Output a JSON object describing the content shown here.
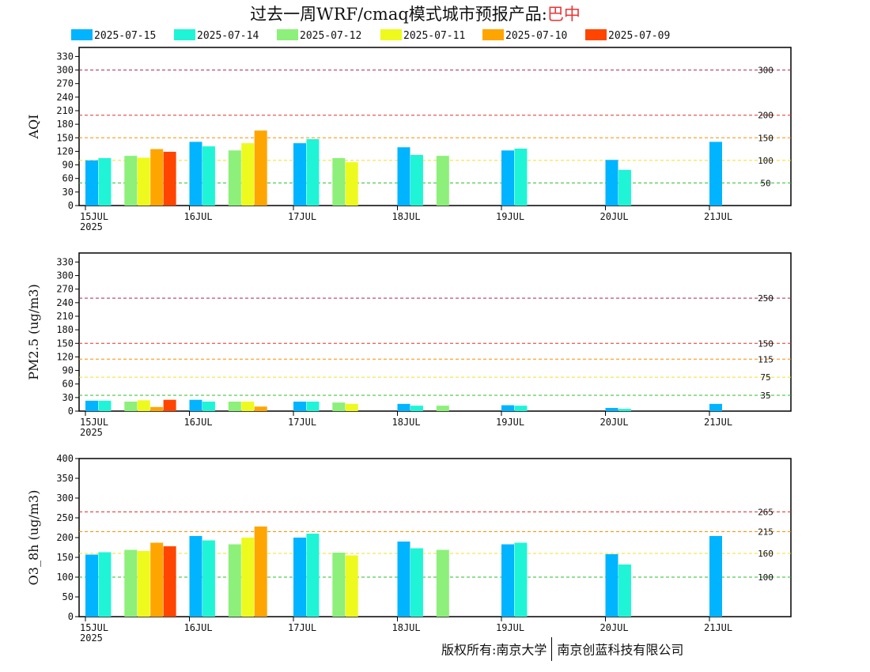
{
  "title": {
    "prefix": "过去一周WRF/cmaq模式城市预报产品:",
    "city": "巴中"
  },
  "footer": {
    "left": "版权所有:南京大学",
    "right": "南京创蓝科技有限公司"
  },
  "chart_data": {
    "type": "bar",
    "legend_position": "top",
    "series": [
      {
        "name": "2025-07-15",
        "color": "#00b4ff"
      },
      {
        "name": "2025-07-14",
        "color": "#1ff5d6"
      },
      {
        "name": "2025-07-12",
        "color": "#8cf07a"
      },
      {
        "name": "2025-07-11",
        "color": "#eefa1e"
      },
      {
        "name": "2025-07-10",
        "color": "#ffa500"
      },
      {
        "name": "2025-07-09",
        "color": "#ff4500"
      }
    ],
    "x_ticks": [
      "15JUL",
      "16JUL",
      "17JUL",
      "18JUL",
      "19JUL",
      "20JUL",
      "21JUL"
    ],
    "x_year": "2025",
    "panels": [
      {
        "ylabel": "AQI",
        "ylim": [
          0,
          350
        ],
        "yticks": [
          0,
          30,
          60,
          90,
          120,
          150,
          180,
          210,
          240,
          270,
          300,
          330
        ],
        "thresholds": [
          {
            "value": 300,
            "label": "300",
            "color": "#b0245a"
          },
          {
            "value": 200,
            "label": "200",
            "color": "#e03030"
          },
          {
            "value": 150,
            "label": "150",
            "color": "#ff8c00"
          },
          {
            "value": 100,
            "label": "100",
            "color": "#f0e020"
          },
          {
            "value": 50,
            "label": "50",
            "color": "#2dbd2d"
          }
        ],
        "bars": [
          {
            "series": "2025-07-15",
            "values": [
              100,
              141,
              138,
              129,
              122,
              101,
              141
            ]
          },
          {
            "series": "2025-07-14",
            "values": [
              105,
              131,
              147,
              112,
              126,
              79
            ]
          },
          {
            "series": "2025-07-12",
            "values": [
              110,
              122,
              105,
              110
            ]
          },
          {
            "series": "2025-07-11",
            "values": [
              106,
              138,
              96
            ]
          },
          {
            "series": "2025-07-10",
            "values": [
              125,
              166
            ]
          },
          {
            "series": "2025-07-09",
            "values": [
              119
            ]
          }
        ]
      },
      {
        "ylabel": "PM2.5 (ug/m3)",
        "ylim": [
          0,
          350
        ],
        "yticks": [
          0,
          30,
          60,
          90,
          120,
          150,
          180,
          210,
          240,
          270,
          300,
          330
        ],
        "thresholds": [
          {
            "value": 250,
            "label": "250",
            "color": "#b0245a"
          },
          {
            "value": 150,
            "label": "150",
            "color": "#e03030"
          },
          {
            "value": 115,
            "label": "115",
            "color": "#ff8c00"
          },
          {
            "value": 75,
            "label": "75",
            "color": "#f0e020"
          },
          {
            "value": 35,
            "label": "35",
            "color": "#2dbd2d"
          }
        ],
        "bars": [
          {
            "series": "2025-07-15",
            "values": [
              23,
              25,
              21,
              16,
              13,
              7,
              16
            ]
          },
          {
            "series": "2025-07-14",
            "values": [
              23,
              21,
              21,
              12,
              12,
              5
            ]
          },
          {
            "series": "2025-07-12",
            "values": [
              21,
              21,
              19,
              12
            ]
          },
          {
            "series": "2025-07-11",
            "values": [
              24,
              21,
              16
            ]
          },
          {
            "series": "2025-07-10",
            "values": [
              9,
              10
            ]
          },
          {
            "series": "2025-07-09",
            "values": [
              25
            ]
          }
        ]
      },
      {
        "ylabel": "O3_8h (ug/m3)",
        "ylim": [
          0,
          400
        ],
        "yticks": [
          0,
          50,
          100,
          150,
          200,
          250,
          300,
          350,
          400
        ],
        "thresholds": [
          {
            "value": 265,
            "label": "265",
            "color": "#e03030"
          },
          {
            "value": 215,
            "label": "215",
            "color": "#ff8c00"
          },
          {
            "value": 160,
            "label": "160",
            "color": "#f0e020"
          },
          {
            "value": 100,
            "label": "100",
            "color": "#2dbd2d"
          }
        ],
        "bars": [
          {
            "series": "2025-07-15",
            "values": [
              157,
              204,
              200,
              190,
              183,
              158,
              204
            ]
          },
          {
            "series": "2025-07-14",
            "values": [
              163,
              193,
              210,
              173,
              187,
              132
            ]
          },
          {
            "series": "2025-07-12",
            "values": [
              169,
              183,
              162,
              169
            ]
          },
          {
            "series": "2025-07-11",
            "values": [
              166,
              200,
              155
            ]
          },
          {
            "series": "2025-07-10",
            "values": [
              187,
              228
            ]
          },
          {
            "series": "2025-07-09",
            "values": [
              178
            ]
          }
        ]
      }
    ]
  }
}
